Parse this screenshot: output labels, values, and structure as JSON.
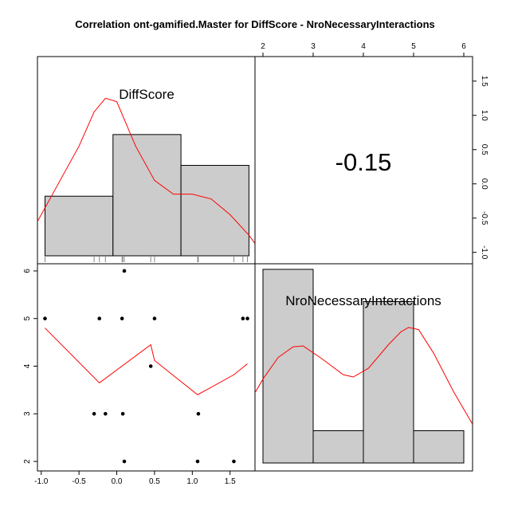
{
  "chart_data": {
    "type": "scatter",
    "title": "Correlation ont-gamified.Master for DiffScore - NroNecessaryInteractions",
    "variables": [
      "DiffScore",
      "NroNecessaryInteractions"
    ],
    "correlation": "-0.15",
    "points": [
      {
        "x": -0.95,
        "y": 5
      },
      {
        "x": -0.23,
        "y": 5
      },
      {
        "x": 0.07,
        "y": 5
      },
      {
        "x": 0.5,
        "y": 5
      },
      {
        "x": 1.67,
        "y": 5
      },
      {
        "x": 1.73,
        "y": 5
      },
      {
        "x": 0.1,
        "y": 6
      },
      {
        "x": 0.45,
        "y": 4
      },
      {
        "x": -0.3,
        "y": 3
      },
      {
        "x": -0.15,
        "y": 3
      },
      {
        "x": 0.08,
        "y": 3
      },
      {
        "x": 1.08,
        "y": 3
      },
      {
        "x": 0.1,
        "y": 2
      },
      {
        "x": 1.07,
        "y": 2
      },
      {
        "x": 1.55,
        "y": 2
      }
    ],
    "smooth_line": [
      {
        "x": -0.95,
        "y": 4.8
      },
      {
        "x": -0.23,
        "y": 3.65
      },
      {
        "x": 0.45,
        "y": 4.45
      },
      {
        "x": 0.5,
        "y": 4.12
      },
      {
        "x": 1.07,
        "y": 3.4
      },
      {
        "x": 1.55,
        "y": 3.82
      },
      {
        "x": 1.73,
        "y": 4.05
      }
    ],
    "hist_diffscore": {
      "bins": [
        [
          -0.95,
          -0.05
        ],
        [
          -0.05,
          0.85
        ],
        [
          0.85,
          1.75
        ]
      ],
      "density": [
        0.82,
        1.72,
        1.27
      ]
    },
    "density_diffscore": [
      {
        "x": -1.25,
        "y": 0.05
      },
      {
        "x": -1.0,
        "y": 0.55
      },
      {
        "x": -0.75,
        "y": 1.05
      },
      {
        "x": -0.5,
        "y": 1.55
      },
      {
        "x": -0.3,
        "y": 2.05
      },
      {
        "x": -0.15,
        "y": 2.25
      },
      {
        "x": 0.0,
        "y": 2.2
      },
      {
        "x": 0.25,
        "y": 1.55
      },
      {
        "x": 0.5,
        "y": 1.05
      },
      {
        "x": 0.75,
        "y": 0.85
      },
      {
        "x": 1.0,
        "y": 0.85
      },
      {
        "x": 1.25,
        "y": 0.78
      },
      {
        "x": 1.5,
        "y": 0.55
      },
      {
        "x": 1.75,
        "y": 0.25
      },
      {
        "x": 1.95,
        "y": -0.05
      }
    ],
    "rug_diffscore": [
      -0.95,
      -0.3,
      -0.23,
      -0.15,
      0.07,
      0.08,
      0.1,
      0.1,
      0.45,
      0.5,
      1.07,
      1.08,
      1.55,
      1.67,
      1.73
    ],
    "hist_interactions": {
      "bins": [
        [
          2,
          3
        ],
        [
          3,
          4
        ],
        [
          4,
          5
        ],
        [
          5,
          6
        ]
      ],
      "counts": [
        6,
        1,
        5,
        1
      ]
    },
    "density_interactions": [
      {
        "x": 1.8,
        "y": 2.55
      },
      {
        "x": 2.0,
        "y": 2.95
      },
      {
        "x": 2.3,
        "y": 3.45
      },
      {
        "x": 2.6,
        "y": 3.7
      },
      {
        "x": 2.8,
        "y": 3.72
      },
      {
        "x": 3.2,
        "y": 3.4
      },
      {
        "x": 3.6,
        "y": 3.05
      },
      {
        "x": 3.8,
        "y": 3.0
      },
      {
        "x": 4.1,
        "y": 3.2
      },
      {
        "x": 4.5,
        "y": 3.75
      },
      {
        "x": 4.75,
        "y": 4.05
      },
      {
        "x": 4.9,
        "y": 4.15
      },
      {
        "x": 5.1,
        "y": 4.1
      },
      {
        "x": 5.4,
        "y": 3.55
      },
      {
        "x": 5.8,
        "y": 2.65
      },
      {
        "x": 6.2,
        "y": 1.85
      }
    ],
    "x_ticks_bottom": [
      "-1.0",
      "-0.5",
      "0.0",
      "0.5",
      "1.0",
      "1.5"
    ],
    "y_ticks_left": [
      "2",
      "3",
      "4",
      "5",
      "6"
    ],
    "x_ticks_top": [
      "2",
      "3",
      "4",
      "5",
      "6"
    ],
    "y_ticks_right": [
      "-1.0",
      "-0.5",
      "0.0",
      "0.5",
      "1.0",
      "1.5"
    ],
    "xlim": [
      -1.05,
      1.83
    ],
    "ylim": [
      1.8,
      6.15
    ],
    "colors": {
      "hist_fill": "#cccccc",
      "line": "#ff0000",
      "point": "#000000"
    }
  }
}
